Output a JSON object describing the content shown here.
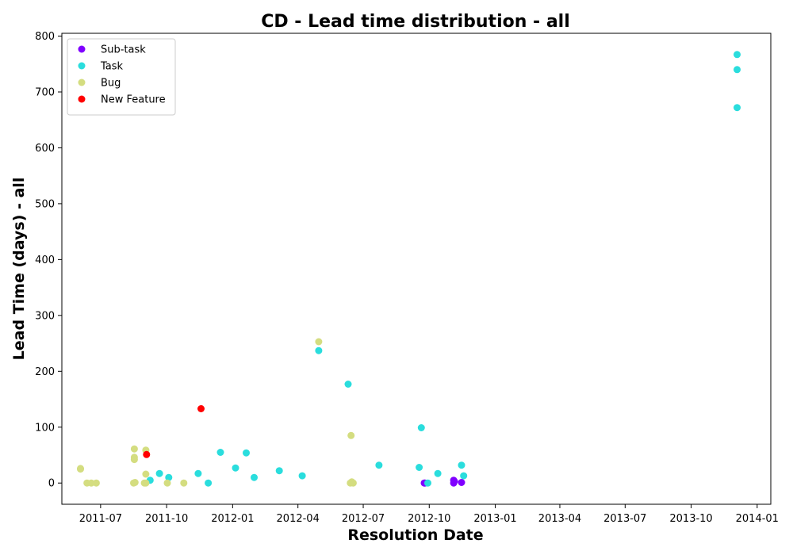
{
  "chart_data": {
    "type": "scatter",
    "title": "CD - Lead time distribution - all",
    "xlabel": "Resolution Date",
    "ylabel": "Lead Time (days) - all",
    "xlim": [
      "2011-05-08",
      "2014-01-20"
    ],
    "ylim": [
      -38,
      805
    ],
    "x_ticks": [
      "2011-07",
      "2011-10",
      "2012-01",
      "2012-04",
      "2012-07",
      "2012-10",
      "2013-01",
      "2013-04",
      "2013-07",
      "2013-10",
      "2014-01"
    ],
    "y_ticks": [
      0,
      100,
      200,
      300,
      400,
      500,
      600,
      700,
      800
    ],
    "grid": false,
    "legend_position": "top-left",
    "series": [
      {
        "name": "Sub-task",
        "color": "#8000ff",
        "points": [
          {
            "x": "2012-09-24",
            "y": 0
          },
          {
            "x": "2012-09-25",
            "y": 0
          },
          {
            "x": "2012-11-04",
            "y": 5
          },
          {
            "x": "2012-11-05",
            "y": 3
          },
          {
            "x": "2012-11-04",
            "y": 0
          },
          {
            "x": "2012-11-15",
            "y": 1
          }
        ]
      },
      {
        "name": "Task",
        "color": "#2adddd",
        "points": [
          {
            "x": "2013-12-04",
            "y": 767
          },
          {
            "x": "2013-12-04",
            "y": 740
          },
          {
            "x": "2013-12-04",
            "y": 672
          },
          {
            "x": "2012-04-30",
            "y": 237
          },
          {
            "x": "2012-06-10",
            "y": 177
          },
          {
            "x": "2012-09-20",
            "y": 99
          },
          {
            "x": "2011-12-15",
            "y": 55
          },
          {
            "x": "2012-01-20",
            "y": 54
          },
          {
            "x": "2012-07-23",
            "y": 32
          },
          {
            "x": "2012-11-15",
            "y": 32
          },
          {
            "x": "2012-09-17",
            "y": 28
          },
          {
            "x": "2012-01-05",
            "y": 27
          },
          {
            "x": "2012-03-06",
            "y": 22
          },
          {
            "x": "2011-09-21",
            "y": 17
          },
          {
            "x": "2011-11-14",
            "y": 17
          },
          {
            "x": "2012-10-13",
            "y": 17
          },
          {
            "x": "2012-04-07",
            "y": 13
          },
          {
            "x": "2012-11-18",
            "y": 13
          },
          {
            "x": "2011-10-04",
            "y": 10
          },
          {
            "x": "2012-01-31",
            "y": 10
          },
          {
            "x": "2011-09-08",
            "y": 5
          },
          {
            "x": "2011-11-28",
            "y": 0
          },
          {
            "x": "2012-09-29",
            "y": 0
          }
        ]
      },
      {
        "name": "Bug",
        "color": "#d4dd80",
        "points": [
          {
            "x": "2012-04-30",
            "y": 253
          },
          {
            "x": "2012-06-14",
            "y": 85
          },
          {
            "x": "2011-08-17",
            "y": 61
          },
          {
            "x": "2011-09-02",
            "y": 59
          },
          {
            "x": "2011-08-17",
            "y": 46
          },
          {
            "x": "2011-08-17",
            "y": 42
          },
          {
            "x": "2011-06-03",
            "y": 26
          },
          {
            "x": "2011-06-03",
            "y": 25
          },
          {
            "x": "2011-09-02",
            "y": 16
          },
          {
            "x": "2011-06-12",
            "y": 0
          },
          {
            "x": "2011-06-18",
            "y": 0
          },
          {
            "x": "2011-06-25",
            "y": 0
          },
          {
            "x": "2011-08-16",
            "y": 0
          },
          {
            "x": "2011-08-18",
            "y": 1
          },
          {
            "x": "2011-08-31",
            "y": 0
          },
          {
            "x": "2011-09-02",
            "y": 0
          },
          {
            "x": "2011-10-02",
            "y": 0
          },
          {
            "x": "2011-10-25",
            "y": 0
          },
          {
            "x": "2012-06-13",
            "y": 0
          },
          {
            "x": "2012-06-15",
            "y": 2
          },
          {
            "x": "2012-06-17",
            "y": 0
          }
        ]
      },
      {
        "name": "New Feature",
        "color": "#ff0000",
        "points": [
          {
            "x": "2011-11-18",
            "y": 133
          },
          {
            "x": "2011-09-03",
            "y": 51
          }
        ]
      }
    ]
  }
}
